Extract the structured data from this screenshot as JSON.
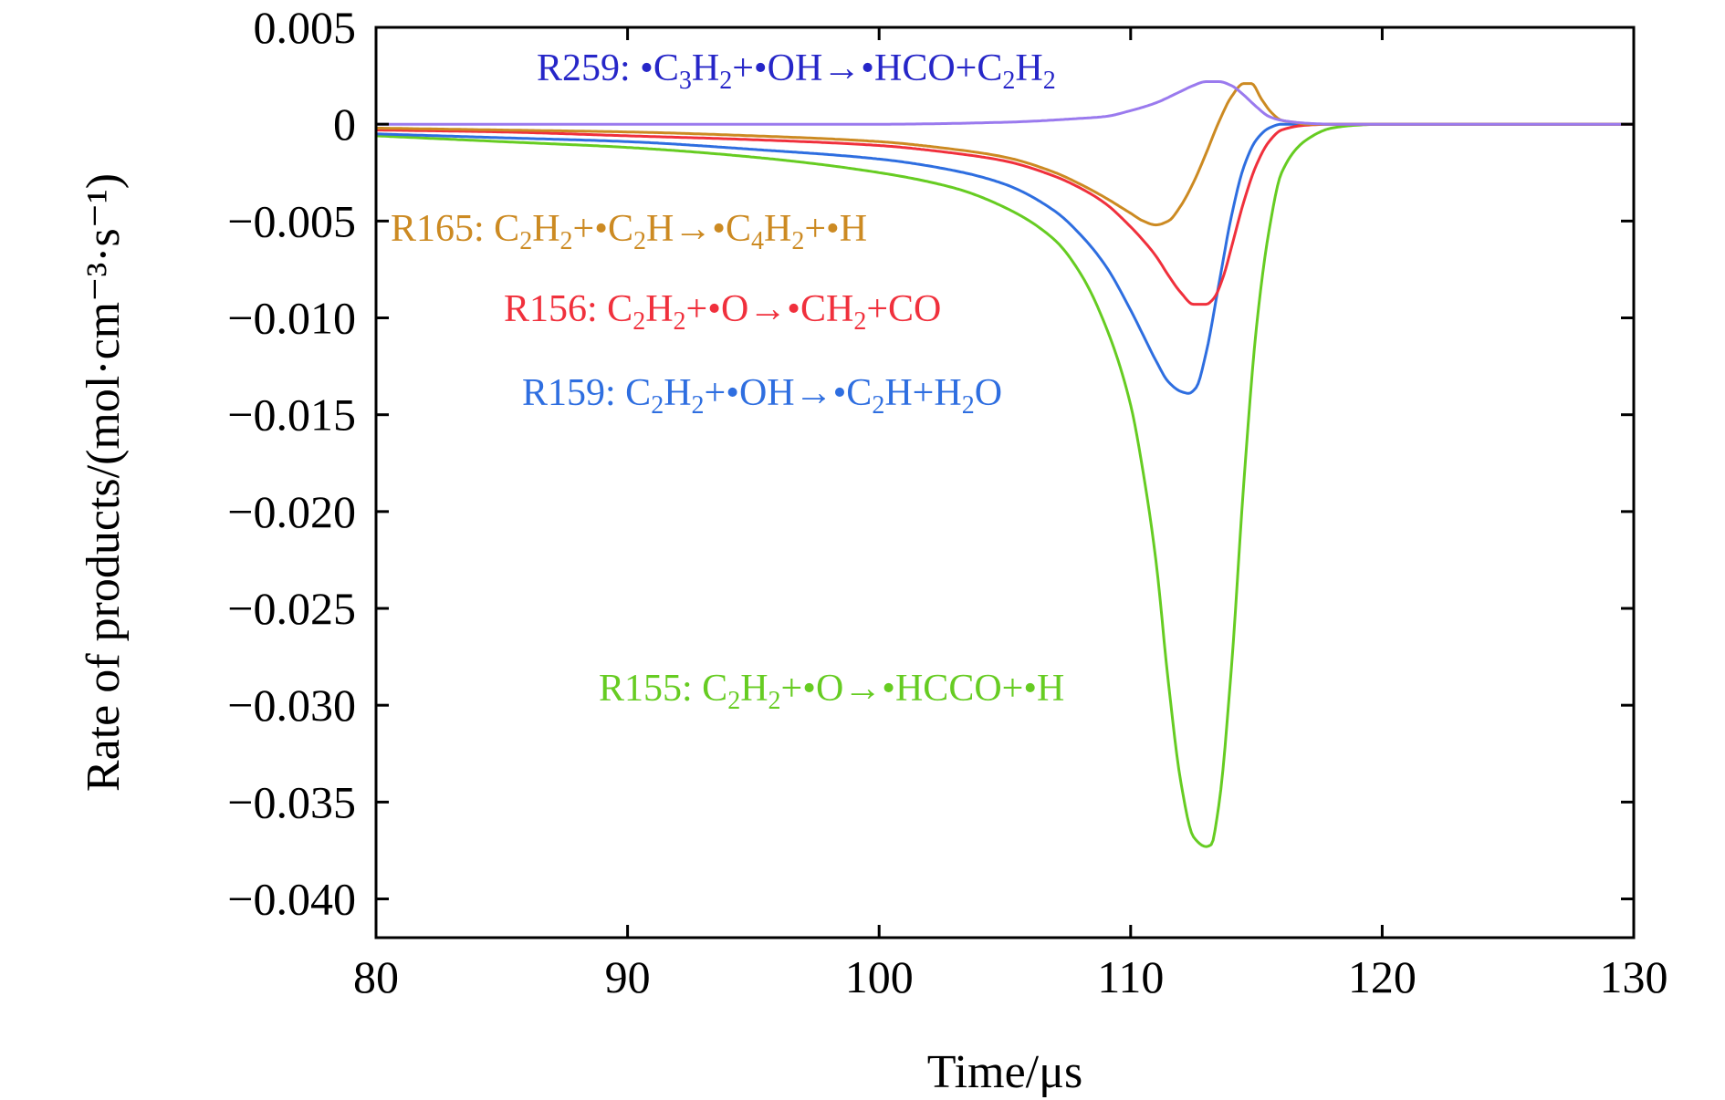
{
  "chart_data": {
    "type": "line",
    "xlabel": "Time/μs",
    "ylabel": "Rate of products/(mol·cm⁻³·s⁻¹)",
    "xlim": [
      80,
      130
    ],
    "ylim": [
      -0.042,
      0.005
    ],
    "x_ticks": [
      80,
      90,
      100,
      110,
      120,
      130
    ],
    "x_tick_labels": [
      "80",
      "90",
      "100",
      "110",
      "120",
      "130"
    ],
    "y_ticks": [
      0.005,
      0,
      -0.005,
      -0.01,
      -0.015,
      -0.02,
      -0.025,
      -0.03,
      -0.035,
      -0.04
    ],
    "y_tick_labels": [
      "0.005",
      "0",
      "−0.005",
      "−0.010",
      "−0.015",
      "−0.020",
      "−0.025",
      "−0.030",
      "−0.035",
      "−0.040"
    ],
    "grid": false,
    "legend": "inline labels",
    "series": [
      {
        "name": "R155: C₂H₂+•O→•HCCO+•H",
        "color": "#66cc22",
        "x": [
          80,
          85,
          90,
          95,
          100,
          103,
          105,
          107,
          108,
          109,
          110,
          110.5,
          111,
          111.5,
          112,
          112.5,
          113,
          113.2,
          113.5,
          114,
          114.5,
          115,
          115.5,
          116,
          117,
          118,
          119,
          120,
          125,
          130
        ],
        "y": [
          -0.0006,
          -0.0009,
          -0.0012,
          -0.0017,
          -0.0025,
          -0.0033,
          -0.0043,
          -0.006,
          -0.0077,
          -0.0104,
          -0.0145,
          -0.018,
          -0.0225,
          -0.0288,
          -0.034,
          -0.0368,
          -0.0373,
          -0.0372,
          -0.0352,
          -0.0282,
          -0.0185,
          -0.0105,
          -0.0055,
          -0.0025,
          -0.0008,
          -0.0002,
          -5e-05,
          0,
          0,
          0
        ]
      },
      {
        "name": "R159: C₂H₂+•OH→•C₂H+H₂O",
        "color": "#2e6ee0",
        "x": [
          80,
          85,
          90,
          95,
          100,
          103,
          105,
          107,
          108,
          109,
          110,
          110.5,
          111,
          111.5,
          112,
          112.3,
          112.6,
          113,
          113.5,
          114,
          114.5,
          115,
          115.5,
          116,
          117,
          118,
          120,
          125,
          130
        ],
        "y": [
          -0.0005,
          -0.0007,
          -0.0009,
          -0.0013,
          -0.0018,
          -0.0024,
          -0.0031,
          -0.0045,
          -0.0057,
          -0.0073,
          -0.0096,
          -0.0109,
          -0.0122,
          -0.0133,
          -0.0138,
          -0.0139,
          -0.0136,
          -0.0118,
          -0.0083,
          -0.0048,
          -0.0022,
          -0.0008,
          -0.0002,
          0,
          0,
          0,
          0,
          0,
          0
        ]
      },
      {
        "name": "R156: C₂H₂+•O→•CH₂+CO",
        "color": "#f0303c",
        "x": [
          80,
          85,
          90,
          95,
          100,
          103,
          105,
          107,
          108,
          109,
          110,
          110.5,
          111,
          111.5,
          112,
          112.5,
          113,
          113.3,
          113.7,
          114,
          114.5,
          115,
          115.5,
          116,
          117,
          118,
          119,
          120,
          125,
          130
        ],
        "y": [
          -0.0003,
          -0.0004,
          -0.0006,
          -0.0008,
          -0.0011,
          -0.0015,
          -0.0019,
          -0.0027,
          -0.0033,
          -0.0041,
          -0.0053,
          -0.006,
          -0.0068,
          -0.0078,
          -0.0087,
          -0.0093,
          -0.0093,
          -0.009,
          -0.0078,
          -0.0064,
          -0.004,
          -0.0021,
          -0.0009,
          -0.0003,
          -5e-05,
          0,
          0,
          0,
          0,
          0
        ]
      },
      {
        "name": "R165: C₂H₂+•C₂H→•C₄H₂+•H",
        "color": "#cc8a22",
        "x": [
          80,
          85,
          90,
          95,
          100,
          103,
          105,
          107,
          108,
          109,
          110,
          110.5,
          111,
          111.5,
          112,
          112.5,
          113,
          113.5,
          114,
          114.5,
          114.8,
          115.2,
          115.6,
          116,
          116.5,
          117,
          118,
          120,
          125,
          130
        ],
        "y": [
          -0.0002,
          -0.0003,
          -0.0004,
          -0.0006,
          -0.0009,
          -0.0013,
          -0.0017,
          -0.0025,
          -0.0031,
          -0.0038,
          -0.0046,
          -0.005,
          -0.0052,
          -0.005,
          -0.0042,
          -0.003,
          -0.0015,
          0.0001,
          0.0014,
          0.0021,
          0.0021,
          0.0013,
          0.0006,
          0.0002,
          0.0001,
          0,
          0,
          0,
          0,
          0
        ]
      },
      {
        "name": "R259: •C₃H₂+•OH→•HCO+C₂H₂",
        "color": "#9a7aee",
        "x": [
          80,
          90,
          100,
          105,
          108,
          109,
          110,
          111,
          112,
          112.5,
          113,
          113.5,
          114,
          114.5,
          115,
          115.5,
          116,
          117,
          118,
          120,
          125,
          130
        ],
        "y": [
          0,
          0,
          0,
          0.0001,
          0.0003,
          0.0004,
          0.0007,
          0.0011,
          0.0017,
          0.002,
          0.0022,
          0.0022,
          0.002,
          0.0015,
          0.0009,
          0.0004,
          0.0002,
          5e-05,
          0,
          0,
          0,
          0
        ]
      }
    ]
  },
  "labels": [
    {
      "series": "R259",
      "color": "#2626c8",
      "parts": [
        {
          "t": "R259: •C"
        },
        {
          "t": "3",
          "sub": true
        },
        {
          "t": "H"
        },
        {
          "t": "2",
          "sub": true
        },
        {
          "t": "+•OH→•HCO+C"
        },
        {
          "t": "2",
          "sub": true
        },
        {
          "t": "H"
        },
        {
          "t": "2",
          "sub": true
        }
      ]
    },
    {
      "series": "R165",
      "color": "#cc8a22",
      "parts": [
        {
          "t": "R165: C"
        },
        {
          "t": "2",
          "sub": true
        },
        {
          "t": "H"
        },
        {
          "t": "2",
          "sub": true
        },
        {
          "t": "+•C"
        },
        {
          "t": "2",
          "sub": true
        },
        {
          "t": "H→•C"
        },
        {
          "t": "4",
          "sub": true
        },
        {
          "t": "H"
        },
        {
          "t": "2",
          "sub": true
        },
        {
          "t": "+•H"
        }
      ]
    },
    {
      "series": "R156",
      "color": "#f0303c",
      "parts": [
        {
          "t": "R156: C"
        },
        {
          "t": "2",
          "sub": true
        },
        {
          "t": "H"
        },
        {
          "t": "2",
          "sub": true
        },
        {
          "t": "+•O→•CH"
        },
        {
          "t": "2",
          "sub": true
        },
        {
          "t": "+CO"
        }
      ]
    },
    {
      "series": "R159",
      "color": "#2e6ee0",
      "parts": [
        {
          "t": "R159: C"
        },
        {
          "t": "2",
          "sub": true
        },
        {
          "t": "H"
        },
        {
          "t": "2",
          "sub": true
        },
        {
          "t": "+•OH→•C"
        },
        {
          "t": "2",
          "sub": true
        },
        {
          "t": "H+H"
        },
        {
          "t": "2",
          "sub": true
        },
        {
          "t": "O"
        }
      ]
    },
    {
      "series": "R155",
      "color": "#66cc22",
      "parts": [
        {
          "t": "R155: C"
        },
        {
          "t": "2",
          "sub": true
        },
        {
          "t": "H"
        },
        {
          "t": "2",
          "sub": true
        },
        {
          "t": "+•O→•HCCO+•H"
        }
      ]
    }
  ]
}
